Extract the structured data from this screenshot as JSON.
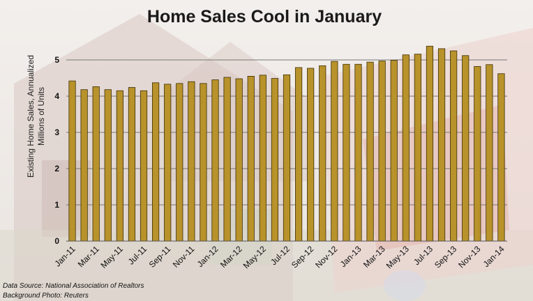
{
  "chart_data": {
    "type": "bar",
    "title": "Home Sales Cool in January",
    "ylabel_line1": "Existing Home Sales, Annualized",
    "ylabel_line2": "Millions of Units",
    "ylim": [
      0,
      5
    ],
    "yticks": [
      0,
      1,
      2,
      3,
      4,
      5
    ],
    "grid": true,
    "bar_color": "#b8922a",
    "categories": [
      "Jan-11",
      "Feb-11",
      "Mar-11",
      "Apr-11",
      "May-11",
      "Jun-11",
      "Jul-11",
      "Aug-11",
      "Sep-11",
      "Oct-11",
      "Nov-11",
      "Dec-11",
      "Jan-12",
      "Feb-12",
      "Mar-12",
      "Apr-12",
      "May-12",
      "Jun-12",
      "Jul-12",
      "Aug-12",
      "Sep-12",
      "Oct-12",
      "Nov-12",
      "Dec-12",
      "Jan-13",
      "Feb-13",
      "Mar-13",
      "Apr-13",
      "May-13",
      "Jun-13",
      "Jul-13",
      "Aug-13",
      "Sep-13",
      "Oct-13",
      "Nov-13",
      "Dec-13",
      "Jan-14"
    ],
    "xtick_labels": [
      "Jan-11",
      "Mar-11",
      "May-11",
      "Jul-11",
      "Sep-11",
      "Nov-11",
      "Jan-12",
      "Mar-12",
      "May-12",
      "Jul-12",
      "Sep-12",
      "Nov-12",
      "Jan-13",
      "Mar-13",
      "May-13",
      "Jul-13",
      "Sep-13",
      "Nov-13",
      "Jan-14"
    ],
    "values": [
      4.42,
      4.18,
      4.26,
      4.18,
      4.15,
      4.24,
      4.15,
      4.37,
      4.33,
      4.35,
      4.4,
      4.35,
      4.45,
      4.52,
      4.48,
      4.55,
      4.58,
      4.49,
      4.59,
      4.79,
      4.77,
      4.84,
      4.96,
      4.88,
      4.88,
      4.94,
      4.97,
      4.99,
      5.14,
      5.16,
      5.38,
      5.31,
      5.25,
      5.12,
      4.82,
      4.87,
      4.62
    ]
  },
  "footer": {
    "source": "Data Source: National Association of Realtors",
    "photo": "Background Photo: Reuters"
  }
}
